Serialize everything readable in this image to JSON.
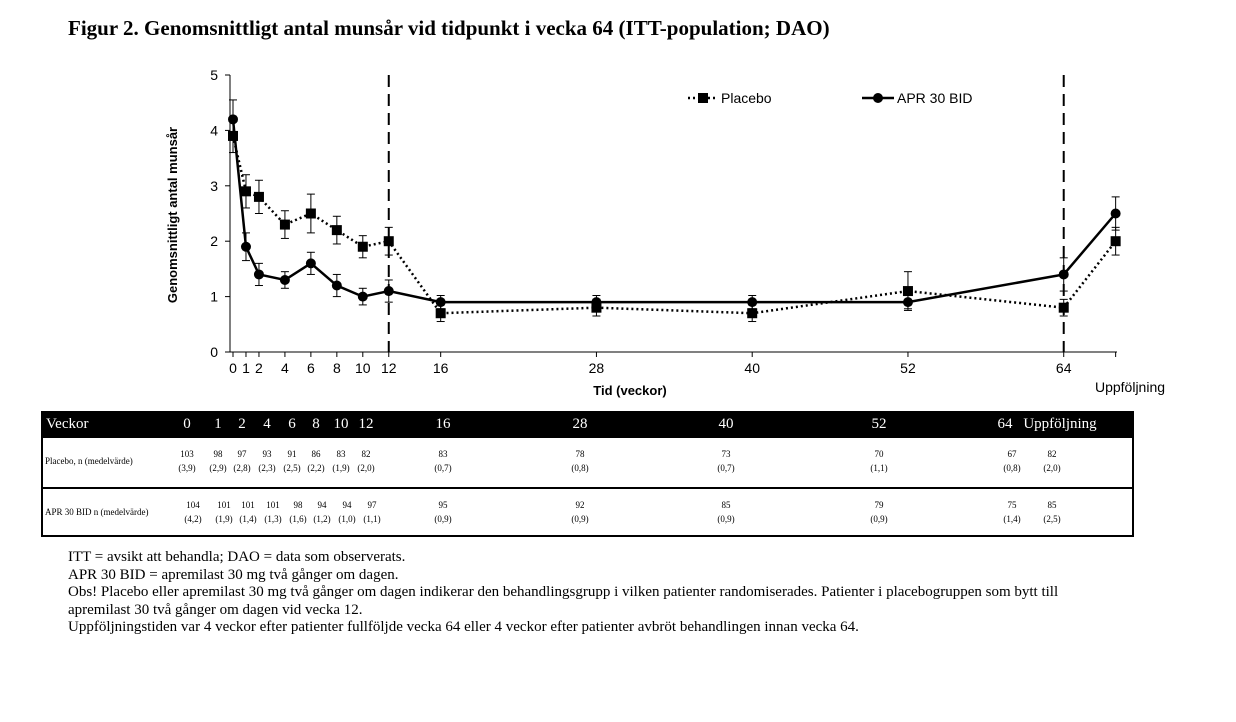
{
  "title": "Figur 2. Genomsnittligt antal munsår vid tidpunkt i vecka 64 (ITT-population; DAO)",
  "chart_data": {
    "type": "line",
    "title": "Figur 2. Genomsnittligt antal munsår vid tidpunkt i vecka 64 (ITT-population; DAO)",
    "xlabel": "Tid (veckor)",
    "ylabel": "Genomsnittligt antal munsår",
    "ylim": [
      0,
      5
    ],
    "yticks": [
      "0",
      "1",
      "2",
      "3",
      "4",
      "5"
    ],
    "xticks": [
      "0",
      "1",
      "2",
      "4",
      "6",
      "8",
      "10",
      "12",
      "16",
      "28",
      "40",
      "52",
      "64",
      "Uppföljning"
    ],
    "x": [
      0,
      1,
      2,
      4,
      6,
      8,
      10,
      12,
      16,
      28,
      40,
      52,
      64,
      68
    ],
    "vlines": [
      12,
      64
    ],
    "legend_position": "top-right",
    "series": [
      {
        "name": "Placebo",
        "style": "dotted",
        "marker": "square",
        "values": [
          3.9,
          2.9,
          2.8,
          2.3,
          2.5,
          2.2,
          1.9,
          2.0,
          0.7,
          0.8,
          0.7,
          1.1,
          0.8,
          2.0
        ],
        "error": [
          0.3,
          0.3,
          0.3,
          0.25,
          0.35,
          0.25,
          0.2,
          0.25,
          0.15,
          0.15,
          0.15,
          0.35,
          0.15,
          0.25
        ]
      },
      {
        "name": "APR 30 BID",
        "style": "solid",
        "marker": "circle",
        "values": [
          4.2,
          1.9,
          1.4,
          1.3,
          1.6,
          1.2,
          1.0,
          1.1,
          0.9,
          0.9,
          0.9,
          0.9,
          1.4,
          2.5
        ],
        "error": [
          0.35,
          0.25,
          0.2,
          0.15,
          0.2,
          0.2,
          0.15,
          0.2,
          0.12,
          0.12,
          0.12,
          0.12,
          0.3,
          0.3
        ]
      }
    ]
  },
  "table": {
    "header": "Veckor",
    "columns": [
      "0",
      "1",
      "2",
      "4",
      "6",
      "8",
      "10",
      "12",
      "16",
      "28",
      "40",
      "52",
      "64",
      "Uppföljning"
    ],
    "rows": [
      {
        "label": "Placebo, n (medelvärde)",
        "n": [
          "103",
          "98",
          "97",
          "93",
          "91",
          "86",
          "83",
          "82",
          "83",
          "78",
          "73",
          "70",
          "67",
          "82"
        ],
        "mean": [
          "(3,9)",
          "(2,9)",
          "(2,8)",
          "(2,3)",
          "(2,5)",
          "(2,2)",
          "(1,9)",
          "(2,0)",
          "(0,7)",
          "(0,8)",
          "(0,7)",
          "(1,1)",
          "(0,8)",
          "(2,0)"
        ]
      },
      {
        "label": "APR 30 BID n (medelvärde)",
        "n": [
          "104",
          "101",
          "101",
          "101",
          "98",
          "94",
          "94",
          "97",
          "95",
          "92",
          "85",
          "79",
          "75",
          "85"
        ],
        "mean": [
          "(4,2)",
          "(1,9)",
          "(1,4)",
          "(1,3)",
          "(1,6)",
          "(1,2)",
          "(1,0)",
          "(1,1)",
          "(0,9)",
          "(0,9)",
          "(0,9)",
          "(0,9)",
          "(1,4)",
          "(2,5)"
        ]
      }
    ]
  },
  "notes": [
    "ITT = avsikt att behandla; DAO = data som observerats.",
    "APR 30 BID = apremilast 30 mg två gånger om dagen.",
    "Obs! Placebo eller apremilast 30 mg två gånger om dagen indikerar den behandlingsgrupp i vilken patienter randomiserades. Patienter i placebogruppen som bytt till apremilast 30 två gånger om dagen vid vecka 12.",
    "Uppföljningstiden var 4 veckor efter patienter fullföljde vecka 64 eller 4 veckor efter patienter avbröt behandlingen innan vecka 64."
  ]
}
